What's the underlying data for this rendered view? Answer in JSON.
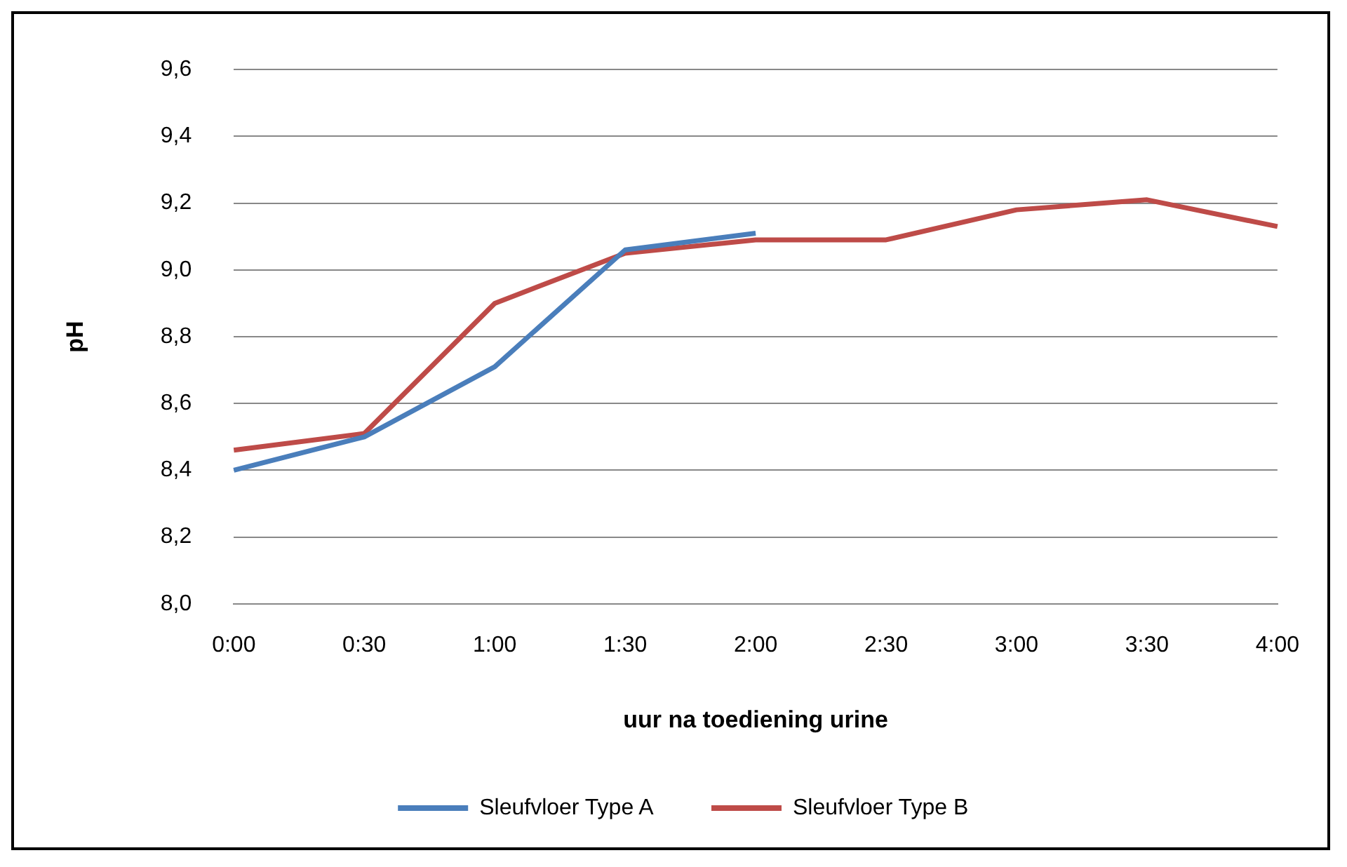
{
  "chart_data": {
    "type": "line",
    "xlabel": "uur na toediening urine",
    "ylabel": "pH",
    "categories": [
      "0:00",
      "0:30",
      "1:00",
      "1:30",
      "2:00",
      "2:30",
      "3:00",
      "3:30",
      "4:00"
    ],
    "series": [
      {
        "name": "Sleufvloer Type A",
        "color": "#4a7ebb",
        "values": [
          8.4,
          8.5,
          8.71,
          9.06,
          9.11,
          null,
          null,
          null,
          null
        ]
      },
      {
        "name": "Sleufvloer Type B",
        "color": "#be4b48",
        "values": [
          8.46,
          8.51,
          8.9,
          9.05,
          9.09,
          9.09,
          9.18,
          9.21,
          9.13
        ]
      }
    ],
    "ylim": [
      8.0,
      9.6
    ],
    "yticks": [
      {
        "value": 8.0,
        "label": "8,0"
      },
      {
        "value": 8.2,
        "label": "8,2"
      },
      {
        "value": 8.4,
        "label": "8,4"
      },
      {
        "value": 8.6,
        "label": "8,6"
      },
      {
        "value": 8.8,
        "label": "8,8"
      },
      {
        "value": 9.0,
        "label": "9,0"
      },
      {
        "value": 9.2,
        "label": "9,2"
      },
      {
        "value": 9.4,
        "label": "9,4"
      },
      {
        "value": 9.6,
        "label": "9,6"
      }
    ],
    "grid": "y",
    "legend": "bottom",
    "marker": "none",
    "line_style": "solid"
  }
}
